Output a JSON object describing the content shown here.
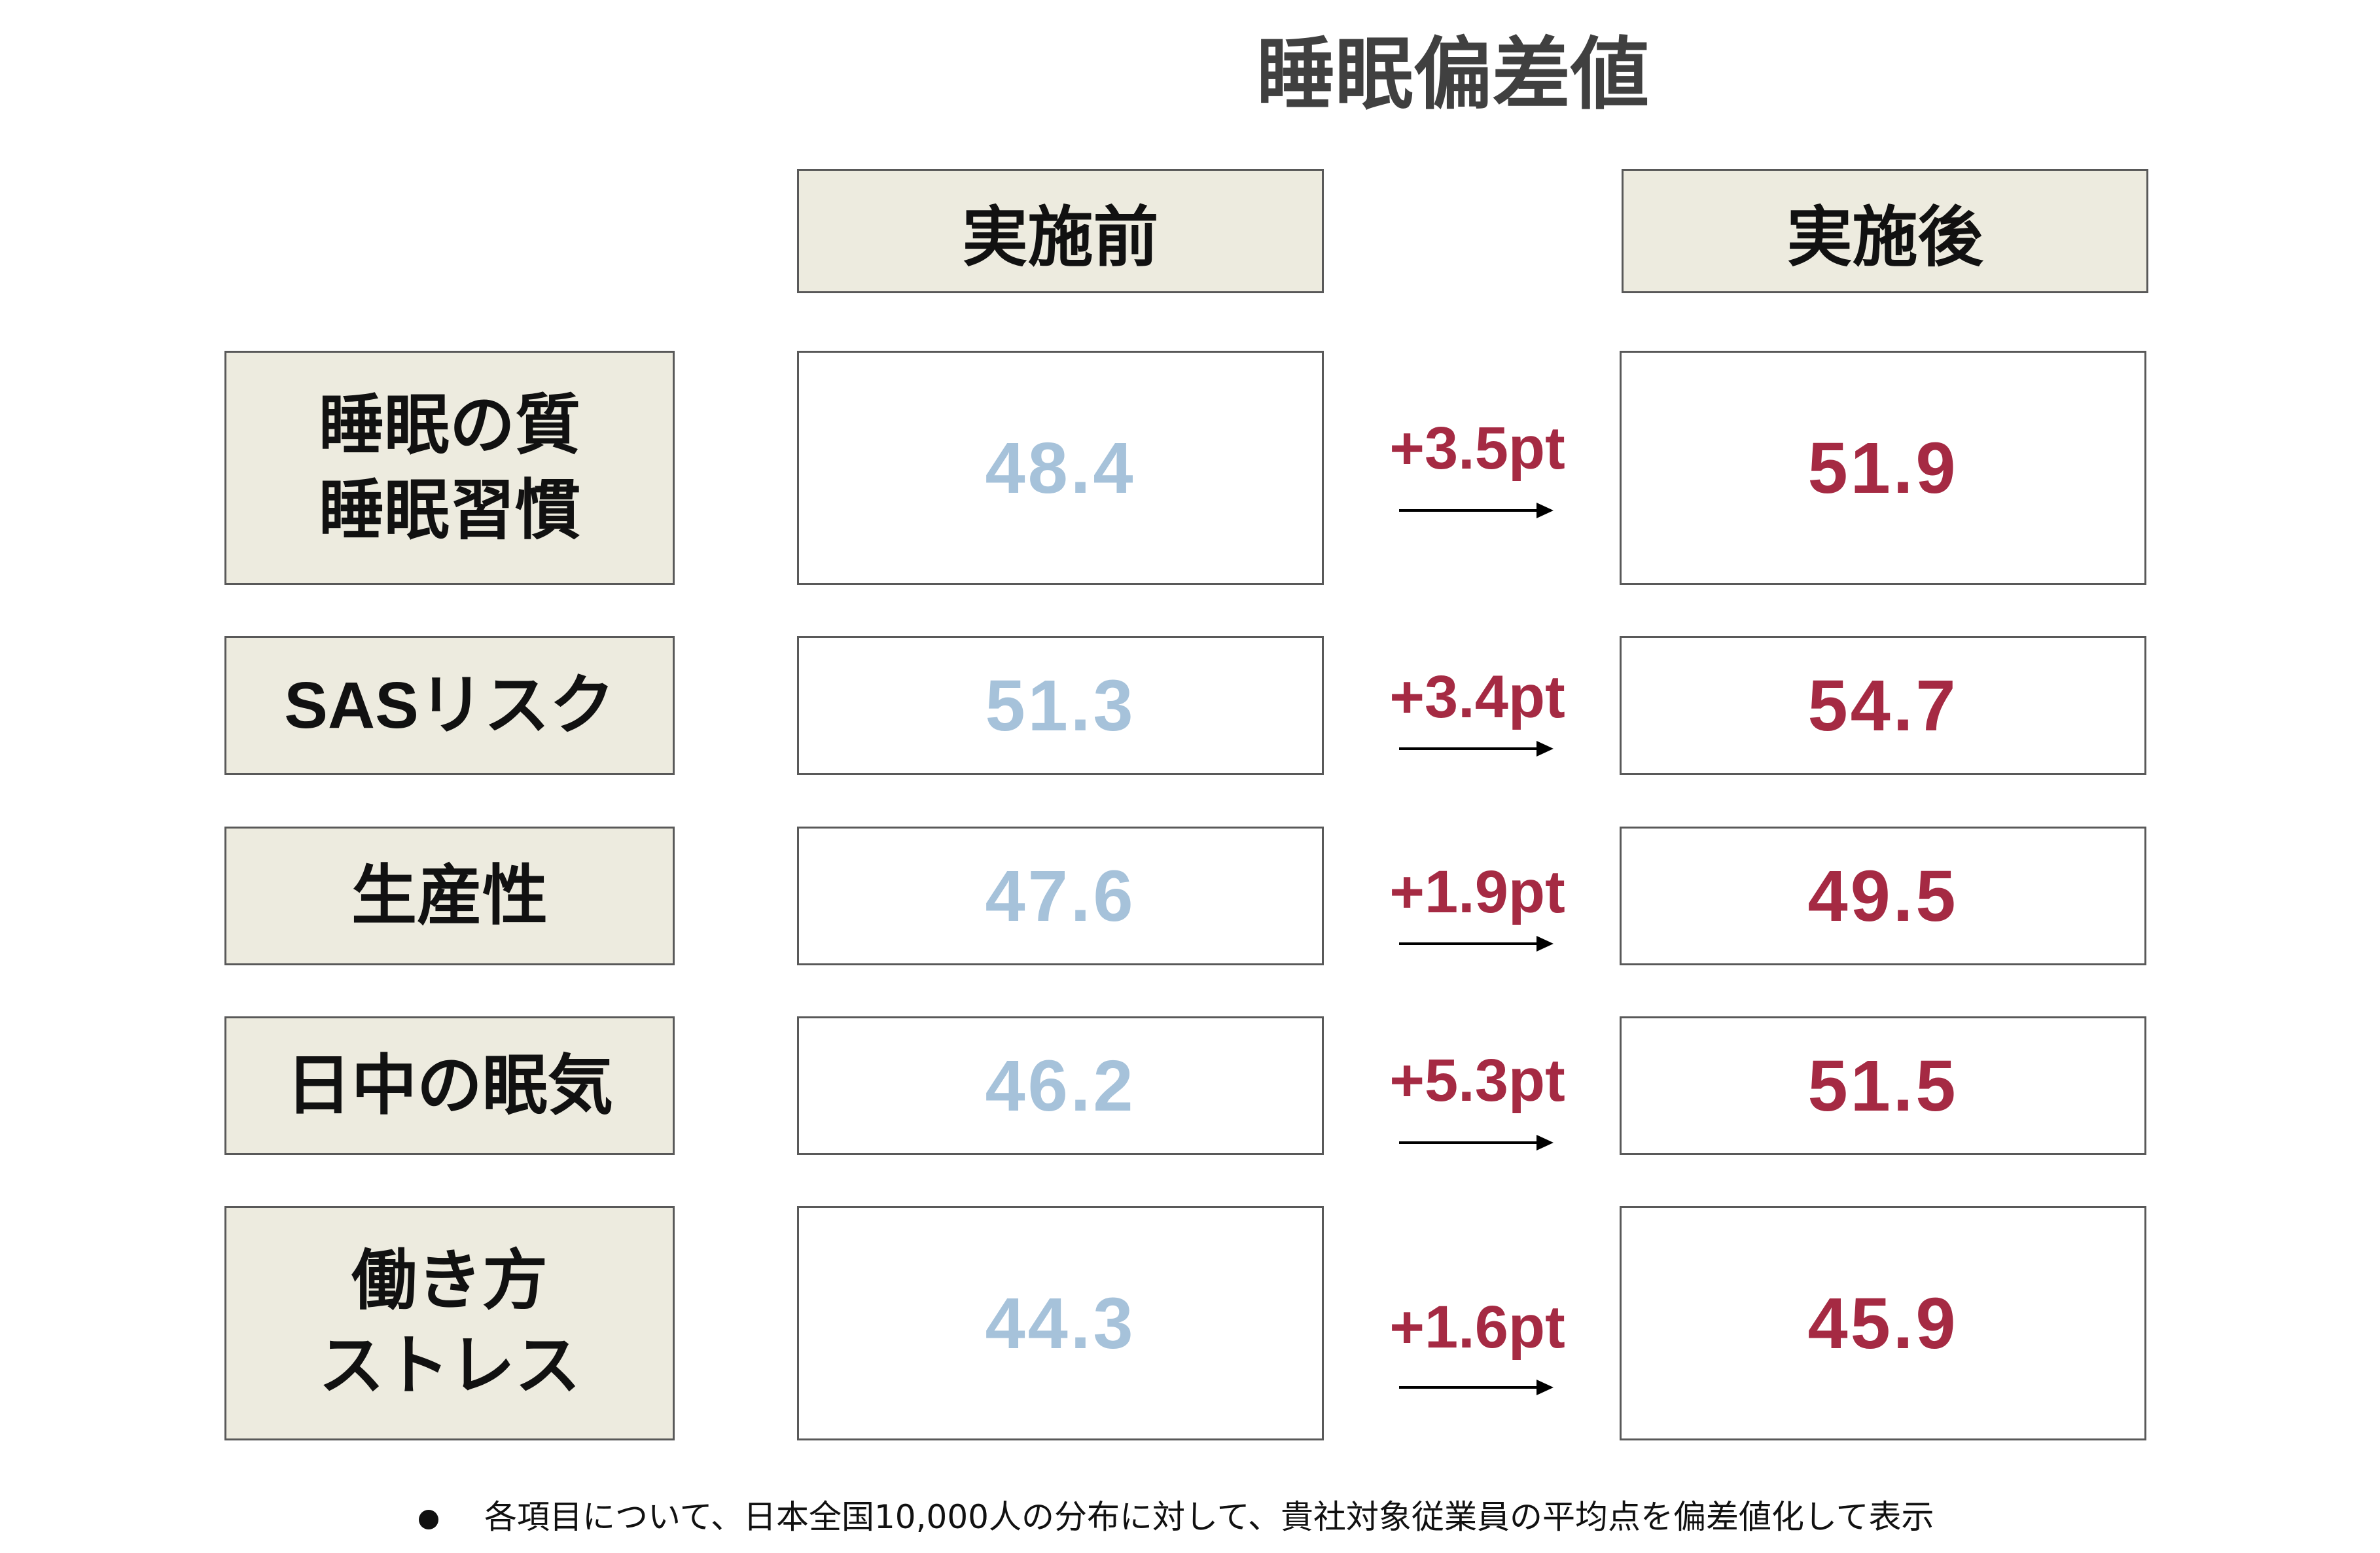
{
  "title": "睡眠偏差値",
  "columns": {
    "before": "実施前",
    "after": "実施後"
  },
  "rows": [
    {
      "label_lines": [
        "睡眠の質",
        "睡眠習慣"
      ],
      "before": "48.4",
      "delta": "+3.5pt",
      "after": "51.9"
    },
    {
      "label_lines": [
        "SASリスク"
      ],
      "before": "51.3",
      "delta": "+3.4pt",
      "after": "54.7"
    },
    {
      "label_lines": [
        "生産性"
      ],
      "before": "47.6",
      "delta": "+1.9pt",
      "after": "49.5"
    },
    {
      "label_lines": [
        "日中の眠気"
      ],
      "before": "46.2",
      "delta": "+5.3pt",
      "after": "51.5"
    },
    {
      "label_lines": [
        "働き方",
        "ストレス"
      ],
      "before": "44.3",
      "delta": "+1.6pt",
      "after": "45.9"
    }
  ],
  "footnote": "各項目について、日本全国10,000人の分布に対して、貴社対象従業員の平均点を偏差値化して表示",
  "colors": {
    "before_value": "#a6c2da",
    "after_value": "#a52a43",
    "header_fill": "#edebdf",
    "title_text": "#404040"
  }
}
